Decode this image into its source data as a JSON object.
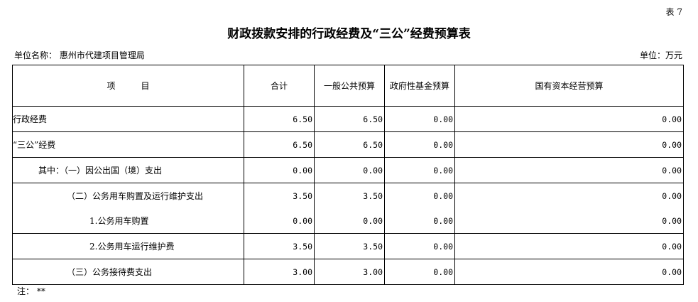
{
  "table_no": "表 7",
  "title": "财政拨款安排的行政经费及“三公”经费预算表",
  "unit_name": "单位名称：  惠州市代建项目管理局",
  "unit": "单位：万元",
  "headers": [
    "项　　　目",
    "合计",
    "一般公共预算",
    "政府性基金预算",
    "国有资本经营预算"
  ],
  "rows": [
    {
      "item": "行政经费",
      "indent": 0,
      "v": [
        "6.50",
        "6.50",
        "0.00",
        "0.00"
      ]
    },
    {
      "item": "“三公”经费",
      "indent": 0,
      "v": [
        "6.50",
        "6.50",
        "0.00",
        "0.00"
      ]
    },
    {
      "item": "其中：（一）因公出国（境）支出",
      "indent": 36,
      "v": [
        "0.00",
        "0.00",
        "0.00",
        "0.00"
      ]
    },
    {
      "item": "（二）公务用车购置及运行维护支出",
      "indent": 76,
      "v": [
        "3.50",
        "3.50",
        "0.00",
        "0.00"
      ]
    },
    {
      "item": "1.公务用车购置",
      "indent": 108,
      "v": [
        "0.00",
        "0.00",
        "0.00",
        "0.00"
      ]
    },
    {
      "item": "2.公务用车运行维护费",
      "indent": 108,
      "v": [
        "3.50",
        "3.50",
        "0.00",
        "0.00"
      ]
    },
    {
      "item": "（三）公务接待费支出",
      "indent": 76,
      "v": [
        "3.00",
        "3.00",
        "0.00",
        "0.00"
      ]
    }
  ],
  "note": "注：  **"
}
